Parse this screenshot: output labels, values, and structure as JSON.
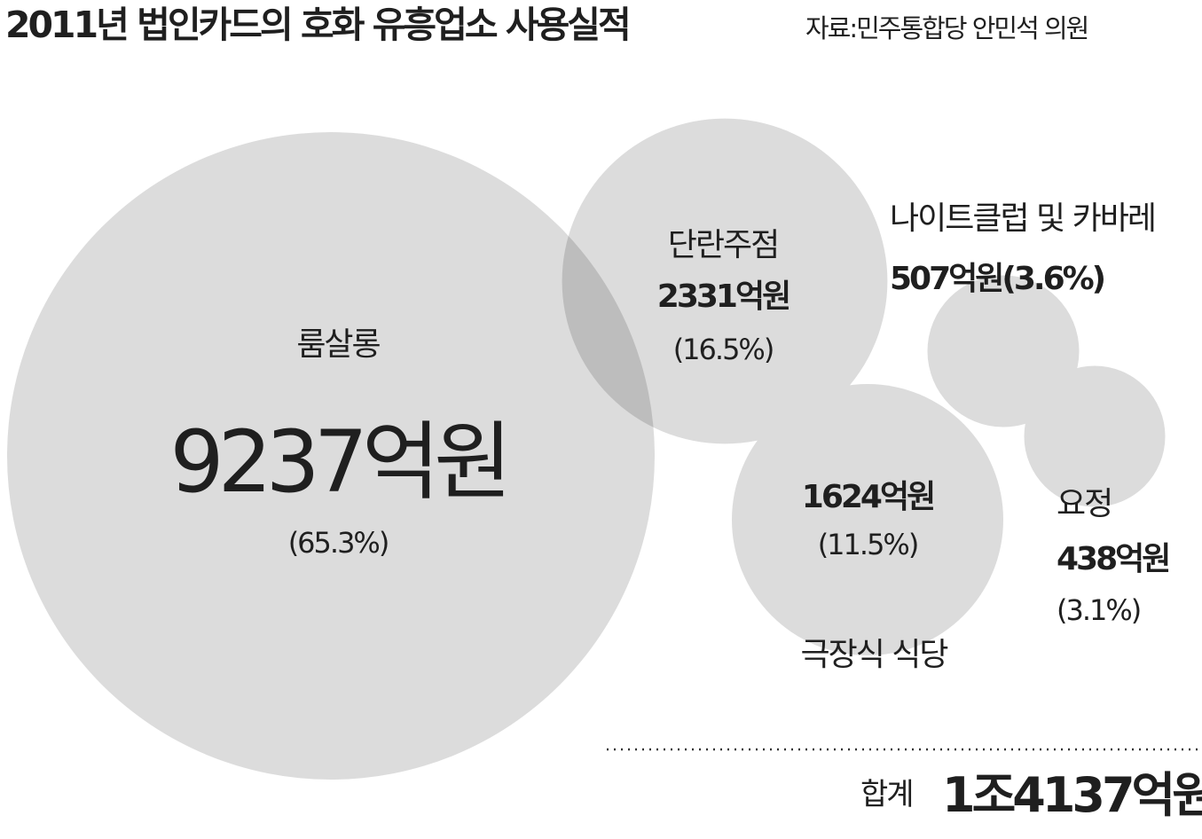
{
  "title": "2011년 법인카드의 호화 유흥업소 사용실적",
  "source": "자료:민주통합당 안민석 의원",
  "chart_data": {
    "type": "bubble",
    "unit": "억원",
    "items": [
      {
        "name": "룸살롱",
        "value": 9237,
        "value_label": "9237억원",
        "percent_label": "(65.3%)",
        "color": "#dcdcdc"
      },
      {
        "name": "단란주점",
        "value": 2331,
        "value_label": "2331억원",
        "percent_label": "(16.5%)",
        "color": "#dcdcdc"
      },
      {
        "name": "극장식 식당",
        "value": 1624,
        "value_label": "1624억원",
        "percent_label": "(11.5%)",
        "color": "#dcdcdc"
      },
      {
        "name": "나이트클럽 및 카바레",
        "value": 507,
        "value_label": "507억원(3.6%)",
        "percent_label": "",
        "color": "#dcdcdc"
      },
      {
        "name": "요정",
        "value": 438,
        "value_label": "438억원",
        "percent_label": "(3.1%)",
        "color": "#dcdcdc"
      }
    ],
    "overlap_color": "#bdbdbd",
    "total": {
      "label": "합계",
      "value_label": "1조4137억원"
    }
  }
}
